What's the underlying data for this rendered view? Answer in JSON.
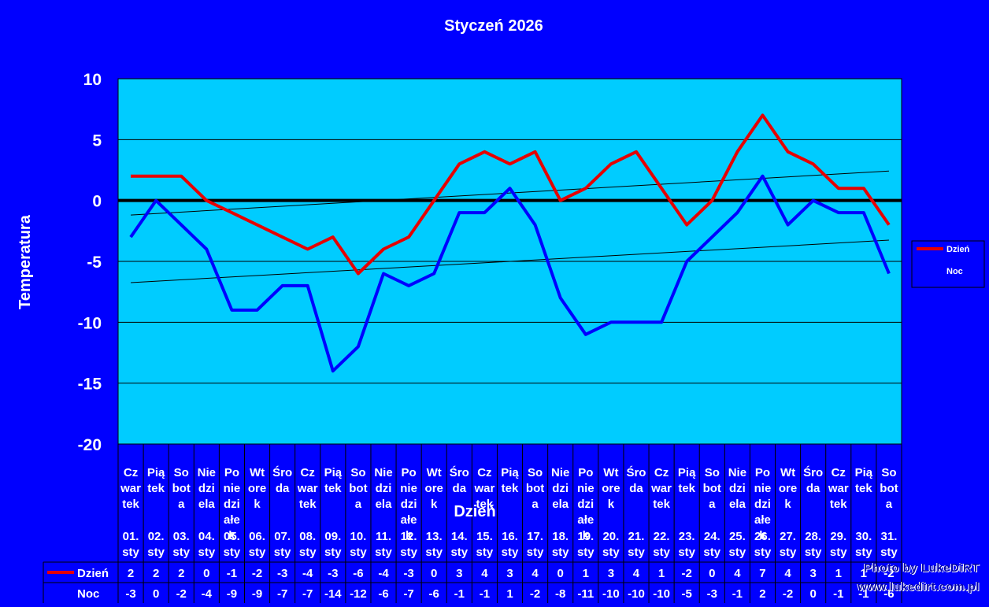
{
  "chart_data": {
    "type": "line",
    "title": "Styczeń 2026",
    "xlabel": "Dzień",
    "ylabel": "Temperatura",
    "ylim": [
      -20,
      10
    ],
    "yticks": [
      10,
      5,
      0,
      -5,
      -10,
      -15,
      -20
    ],
    "grid": true,
    "legend_position": "right",
    "day_names": [
      [
        "Cz",
        "war",
        "tek"
      ],
      [
        "Pią",
        "tek"
      ],
      [
        "So",
        "bot",
        "a"
      ],
      [
        "Nie",
        "dzi",
        "ela"
      ],
      [
        "Po",
        "nie",
        "dzi",
        "ałe",
        "k"
      ],
      [
        "Wt",
        "ore",
        "k"
      ],
      [
        "Śro",
        "da"
      ],
      [
        "Cz",
        "war",
        "tek"
      ],
      [
        "Pią",
        "tek"
      ],
      [
        "So",
        "bot",
        "a"
      ],
      [
        "Nie",
        "dzi",
        "ela"
      ],
      [
        "Po",
        "nie",
        "dzi",
        "ałe",
        "k"
      ],
      [
        "Wt",
        "ore",
        "k"
      ],
      [
        "Śro",
        "da"
      ],
      [
        "Cz",
        "war",
        "tek"
      ],
      [
        "Pią",
        "tek"
      ],
      [
        "So",
        "bot",
        "a"
      ],
      [
        "Nie",
        "dzi",
        "ela"
      ],
      [
        "Po",
        "nie",
        "dzi",
        "ałe",
        "k"
      ],
      [
        "Wt",
        "ore",
        "k"
      ],
      [
        "Śro",
        "da"
      ],
      [
        "Cz",
        "war",
        "tek"
      ],
      [
        "Pią",
        "tek"
      ],
      [
        "So",
        "bot",
        "a"
      ],
      [
        "Nie",
        "dzi",
        "ela"
      ],
      [
        "Po",
        "nie",
        "dzi",
        "ałe",
        "k"
      ],
      [
        "Wt",
        "ore",
        "k"
      ],
      [
        "Śro",
        "da"
      ],
      [
        "Cz",
        "war",
        "tek"
      ],
      [
        "Pią",
        "tek"
      ],
      [
        "So",
        "bot",
        "a"
      ]
    ],
    "dates": [
      [
        "01.",
        "sty"
      ],
      [
        "02.",
        "sty"
      ],
      [
        "03.",
        "sty"
      ],
      [
        "04.",
        "sty"
      ],
      [
        "05.",
        "sty"
      ],
      [
        "06.",
        "sty"
      ],
      [
        "07.",
        "sty"
      ],
      [
        "08.",
        "sty"
      ],
      [
        "09.",
        "sty"
      ],
      [
        "10.",
        "sty"
      ],
      [
        "11.",
        "sty"
      ],
      [
        "12.",
        "sty"
      ],
      [
        "13.",
        "sty"
      ],
      [
        "14.",
        "sty"
      ],
      [
        "15.",
        "sty"
      ],
      [
        "16.",
        "sty"
      ],
      [
        "17.",
        "sty"
      ],
      [
        "18.",
        "sty"
      ],
      [
        "19.",
        "sty"
      ],
      [
        "20.",
        "sty"
      ],
      [
        "21.",
        "sty"
      ],
      [
        "22.",
        "sty"
      ],
      [
        "23.",
        "sty"
      ],
      [
        "24.",
        "sty"
      ],
      [
        "25.",
        "sty"
      ],
      [
        "26.",
        "sty"
      ],
      [
        "27.",
        "sty"
      ],
      [
        "28.",
        "sty"
      ],
      [
        "29.",
        "sty"
      ],
      [
        "30.",
        "sty"
      ],
      [
        "31.",
        "sty"
      ]
    ],
    "series": [
      {
        "name": "Dzień",
        "color": "#E60000",
        "values": [
          2,
          2,
          2,
          0,
          -1,
          -2,
          -3,
          -4,
          -3,
          -6,
          -4,
          -3,
          0,
          3,
          4,
          3,
          4,
          0,
          1,
          3,
          4,
          1,
          -2,
          0,
          4,
          7,
          4,
          3,
          1,
          1,
          -2
        ]
      },
      {
        "name": "Noc",
        "color": "#0000FF",
        "values": [
          -3,
          0,
          -2,
          -4,
          -9,
          -9,
          -7,
          -7,
          -14,
          -12,
          -6,
          -7,
          -6,
          -1,
          -1,
          1,
          -2,
          -8,
          -11,
          -10,
          -10,
          -10,
          -5,
          -3,
          -1,
          2,
          -2,
          0,
          -1,
          -1,
          -6
        ]
      }
    ],
    "colors": {
      "background": "#0000FF",
      "plot_area": "#00CCFF",
      "zero_line": "#000000",
      "trend": "#000000"
    }
  },
  "credit": {
    "line1": "Photo by LukeDiRT",
    "line2": "www.lukedirt.com.pl"
  }
}
